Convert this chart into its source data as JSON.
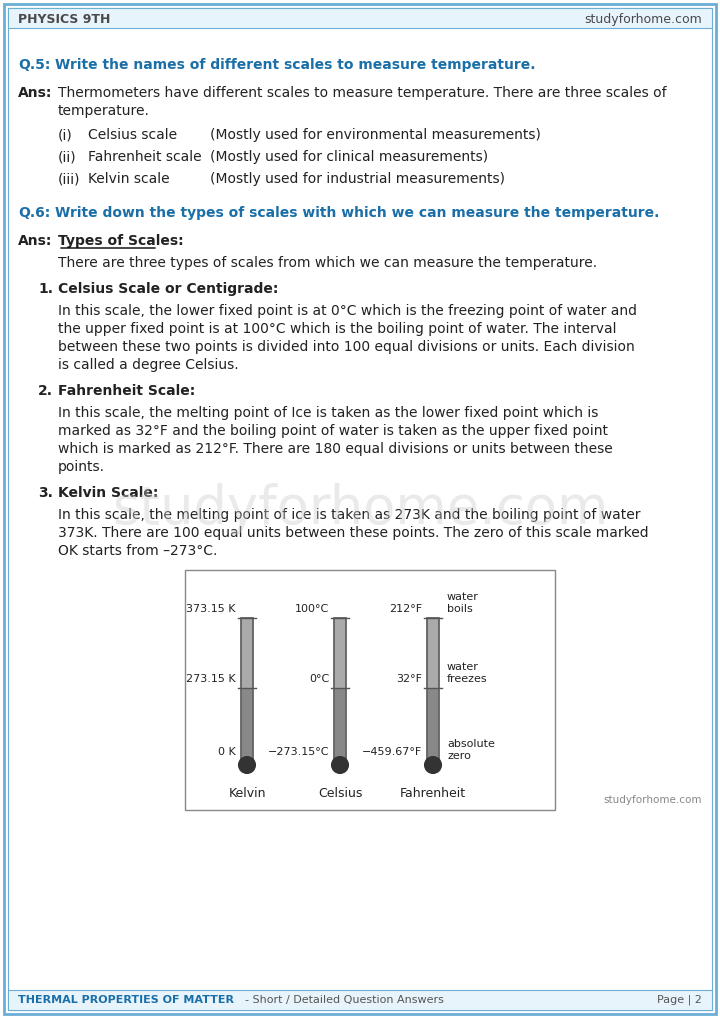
{
  "header_left": "PHYSICS 9TH",
  "header_right": "studyforhome.com",
  "footer_left": "THERMAL PROPERTIES OF MATTER",
  "footer_middle": "- Short / Detailed Question Answers",
  "footer_right": "Page | 2",
  "bg_color": "#ffffff",
  "header_bg": "#f0f8ff",
  "border_color": "#6baed6",
  "header_text_color": "#4a4a4a",
  "q_color": "#1a6fa8",
  "bold_blue": "#1a6fa8",
  "q5_question": "Write the names of different scales to measure temperature.",
  "q5_ans_text": "Thermometers have different scales to measure temperature. There are three scales of\ntemperature.",
  "q5_items": [
    [
      "(i)",
      "Celsius scale",
      "(Mostly used for environmental measurements)"
    ],
    [
      "(ii)",
      "Fahrenheit scale",
      "(Mostly used for clinical measurements)"
    ],
    [
      "(iii)",
      "Kelvin scale",
      "(Mostly used for industrial measurements)"
    ]
  ],
  "q6_question": "Write down the types of scales with which we can measure the temperature.",
  "q6_ans_label": "Types of Scales:",
  "q6_intro": "There are three types of scales from which we can measure the temperature.",
  "scale1_title": "Celsius Scale or Centigrade:",
  "scale1_text": "In this scale, the lower fixed point is at 0°C which is the freezing point of water and\nthe upper fixed point is at 100°C which is the boiling point of water. The interval\nbetween these two points is divided into 100 equal divisions or units. Each division\nis called a degree Celsius.",
  "scale2_title": "Fahrenheit Scale:",
  "scale2_text": "In this scale, the melting point of Ice is taken as the lower fixed point which is\nmarked as 32°F and the boiling point of water is taken as the upper fixed point\nwhich is marked as 212°F. There are 180 equal divisions or units between these\npoints.",
  "scale3_title": "Kelvin Scale:",
  "scale3_text": "In this scale, the melting point of ice is taken as 273K and the boiling point of water\n373K. There are 100 equal units between these points. The zero of this scale marked\nOK starts from –273°C.",
  "watermark": "studyforhome.com",
  "thermometer_labels_kelvin": [
    "373.15 K",
    "273.15 K",
    "0 K"
  ],
  "thermometer_labels_celsius": [
    "100°C",
    "0°C",
    "−273.15°C"
  ],
  "thermometer_labels_fahrenheit": [
    "212°F",
    "32°F",
    "−459.67°F"
  ],
  "thermo_right_labels": [
    "water\nboils",
    "water\nfreezes",
    "absolute\nzero"
  ],
  "thermo_bottom_labels": [
    "Kelvin",
    "Celsius",
    "Fahrenheit"
  ]
}
